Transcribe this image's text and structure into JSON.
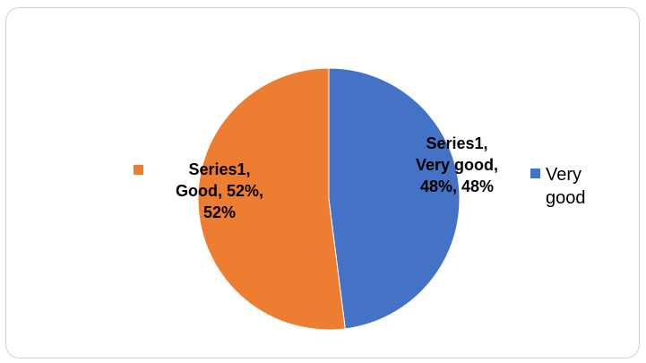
{
  "chart_data": {
    "type": "pie",
    "series_name": "Series1",
    "slices": [
      {
        "category": "Very good",
        "value": 48,
        "percent": 48,
        "color": "#4472C4",
        "data_label": "Series1,\nVery good,\n48%, 48%"
      },
      {
        "category": "Good",
        "value": 52,
        "percent": 52,
        "color": "#ED7D31",
        "data_label": "Series1,\nGood, 52%,\n52%"
      }
    ],
    "legend": [
      {
        "label": "Very good",
        "color": "#4472C4"
      },
      {
        "label": "Good",
        "color": "#ED7D31"
      }
    ]
  }
}
